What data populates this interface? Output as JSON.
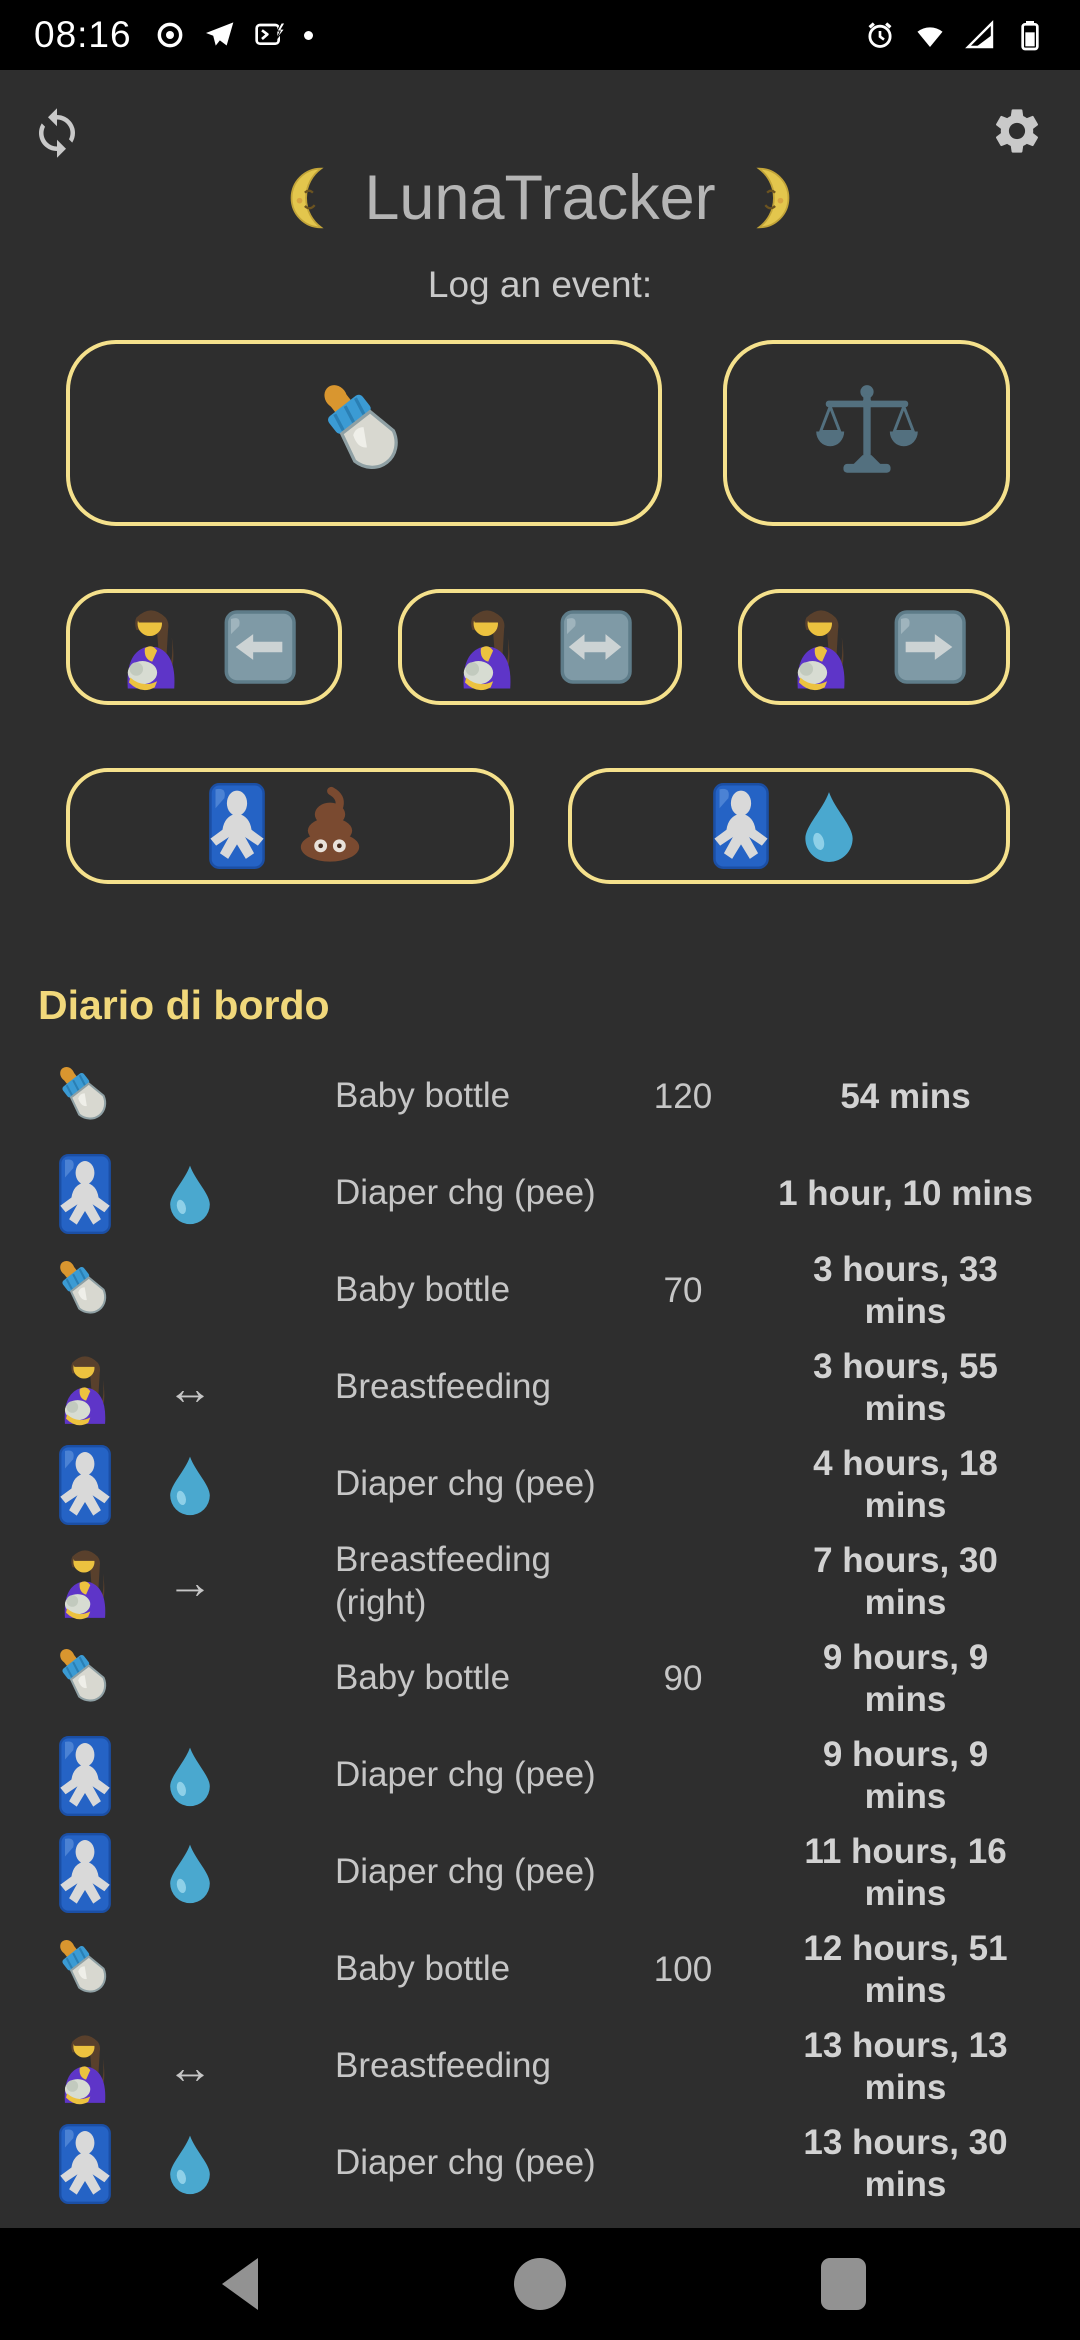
{
  "status_bar": {
    "time": "08:16",
    "left_icons": [
      "record-icon",
      "telegram-icon",
      "message-flash-icon",
      "notification-dot"
    ],
    "right_icons": [
      "alarm-icon",
      "wifi-icon",
      "cell-signal-icon",
      "battery-icon"
    ]
  },
  "header": {
    "title": "LunaTracker",
    "subtitle": "Log an event:",
    "moon_left": "last-quarter-moon-face-icon",
    "moon_right": "first-quarter-moon-face-icon",
    "refresh": "sync-icon",
    "settings": "gear-icon"
  },
  "event_buttons": {
    "rows": [
      [
        {
          "id": "baby-bottle",
          "icons": [
            "baby-bottle"
          ]
        },
        {
          "id": "weight",
          "icons": [
            "scales"
          ]
        }
      ],
      [
        {
          "id": "breastfeeding-left",
          "icons": [
            "breastfeeding",
            "arrow-left-square"
          ]
        },
        {
          "id": "breastfeeding-both",
          "icons": [
            "breastfeeding",
            "arrow-both-square"
          ]
        },
        {
          "id": "breastfeeding-right",
          "icons": [
            "breastfeeding",
            "arrow-right-square"
          ]
        }
      ],
      [
        {
          "id": "diaper-poo",
          "icons": [
            "baby-symbol",
            "poop"
          ]
        },
        {
          "id": "diaper-pee",
          "icons": [
            "baby-symbol",
            "droplet"
          ]
        }
      ]
    ]
  },
  "log": {
    "heading": "Diario di bordo",
    "rows": [
      {
        "icon": "baby-bottle",
        "icon2": "",
        "icon2_text": "",
        "name": "Baby bottle",
        "amount": "120",
        "elapsed": "54 mins"
      },
      {
        "icon": "baby-symbol",
        "icon2": "droplet",
        "icon2_text": "",
        "name": "Diaper chg (pee)",
        "amount": "",
        "elapsed": "1 hour, 10 mins"
      },
      {
        "icon": "baby-bottle",
        "icon2": "",
        "icon2_text": "",
        "name": "Baby bottle",
        "amount": "70",
        "elapsed": "3 hours, 33 mins"
      },
      {
        "icon": "breastfeeding",
        "icon2": "",
        "icon2_text": "↔",
        "name": "Breastfeeding",
        "amount": "",
        "elapsed": "3 hours, 55 mins"
      },
      {
        "icon": "baby-symbol",
        "icon2": "droplet",
        "icon2_text": "",
        "name": "Diaper chg (pee)",
        "amount": "",
        "elapsed": "4 hours, 18 mins"
      },
      {
        "icon": "breastfeeding",
        "icon2": "",
        "icon2_text": "→",
        "name": "Breastfeeding (right)",
        "amount": "",
        "elapsed": "7 hours, 30 mins"
      },
      {
        "icon": "baby-bottle",
        "icon2": "",
        "icon2_text": "",
        "name": "Baby bottle",
        "amount": "90",
        "elapsed": "9 hours, 9 mins"
      },
      {
        "icon": "baby-symbol",
        "icon2": "droplet",
        "icon2_text": "",
        "name": "Diaper chg (pee)",
        "amount": "",
        "elapsed": "9 hours, 9 mins"
      },
      {
        "icon": "baby-symbol",
        "icon2": "droplet",
        "icon2_text": "",
        "name": "Diaper chg (pee)",
        "amount": "",
        "elapsed": "11 hours, 16 mins"
      },
      {
        "icon": "baby-bottle",
        "icon2": "",
        "icon2_text": "",
        "name": "Baby bottle",
        "amount": "100",
        "elapsed": "12 hours, 51 mins"
      },
      {
        "icon": "breastfeeding",
        "icon2": "",
        "icon2_text": "↔",
        "name": "Breastfeeding",
        "amount": "",
        "elapsed": "13 hours, 13 mins"
      },
      {
        "icon": "baby-symbol",
        "icon2": "droplet",
        "icon2_text": "",
        "name": "Diaper chg (pee)",
        "amount": "",
        "elapsed": "13 hours, 30 mins"
      }
    ]
  },
  "nav": {
    "buttons": [
      "back",
      "home",
      "recents"
    ]
  },
  "colors": {
    "background": "#2e2e2e",
    "bar": "#000000",
    "button_border": "#f5e18c",
    "heading_yellow": "#f1d87b",
    "text_gray": "#c6c6c6",
    "title_gray": "#b5b5b5"
  }
}
